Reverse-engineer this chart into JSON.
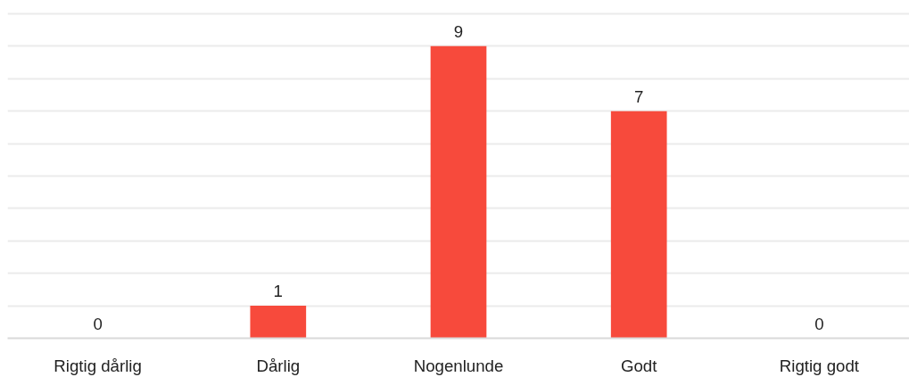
{
  "chart_data": {
    "type": "bar",
    "categories": [
      "Rigtig dårlig",
      "Dårlig",
      "Nogenlunde",
      "Godt",
      "Rigtig godt"
    ],
    "values": [
      0,
      1,
      9,
      7,
      0
    ],
    "color": "#f74a3c",
    "grid": "y",
    "tick_labels": "x",
    "data_labels": true
  }
}
